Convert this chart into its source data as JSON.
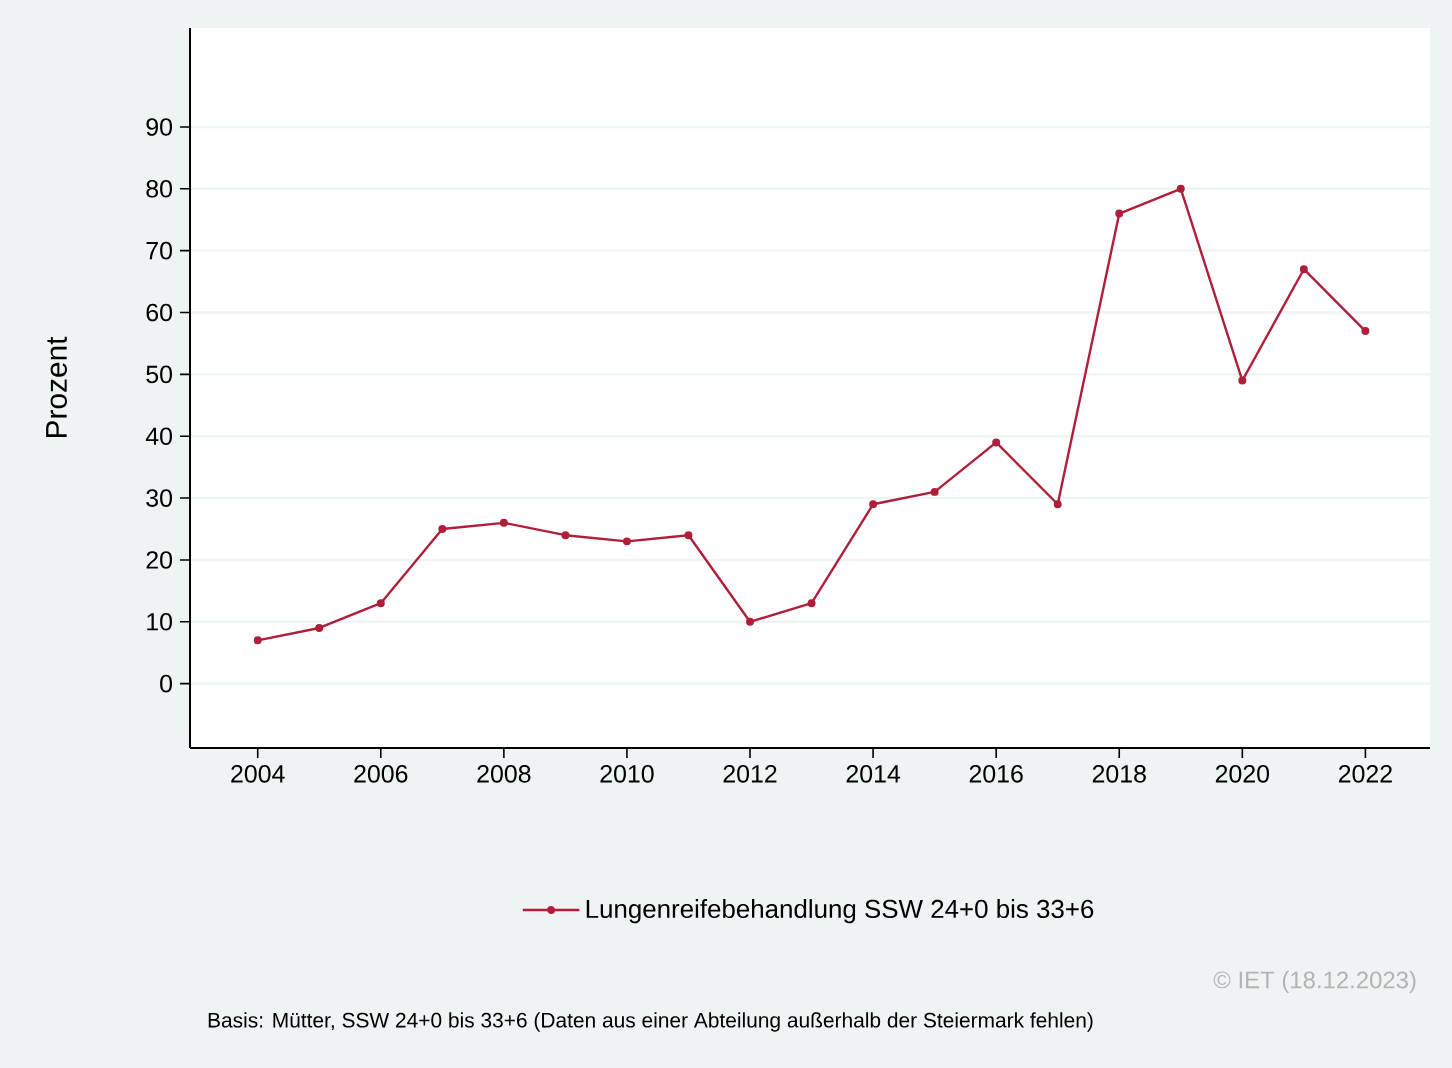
{
  "chart_data": {
    "type": "line",
    "ylabel": "Prozent",
    "x": [
      2004,
      2005,
      2006,
      2007,
      2008,
      2009,
      2010,
      2011,
      2012,
      2013,
      2014,
      2015,
      2016,
      2017,
      2018,
      2019,
      2020,
      2021,
      2022
    ],
    "series": [
      {
        "name": "Lungenreifebehandlung SSW 24+0 bis 33+6",
        "color": "#b01e3a",
        "values": [
          7,
          9,
          13,
          25,
          26,
          24,
          23,
          24,
          10,
          13,
          29,
          31,
          39,
          29,
          76,
          80,
          49,
          67,
          57
        ]
      }
    ],
    "xlim": [
      2002.9,
      2023.05
    ],
    "ylim": [
      -10.4,
      106
    ],
    "xticks": [
      2004,
      2006,
      2008,
      2010,
      2012,
      2014,
      2016,
      2018,
      2020,
      2022
    ],
    "yticks": [
      0,
      10,
      20,
      30,
      40,
      50,
      60,
      70,
      80,
      90
    ],
    "grid": "y",
    "legend": "bottom",
    "marker": "circle",
    "line_style": "solid",
    "annotations": [
      "© IET (18.12.2023)",
      "Basis: Mütter, SSW 24+0 bis 33+6 (Daten aus einer Abteilung außerhalb der Steiermark fehlen)"
    ]
  }
}
